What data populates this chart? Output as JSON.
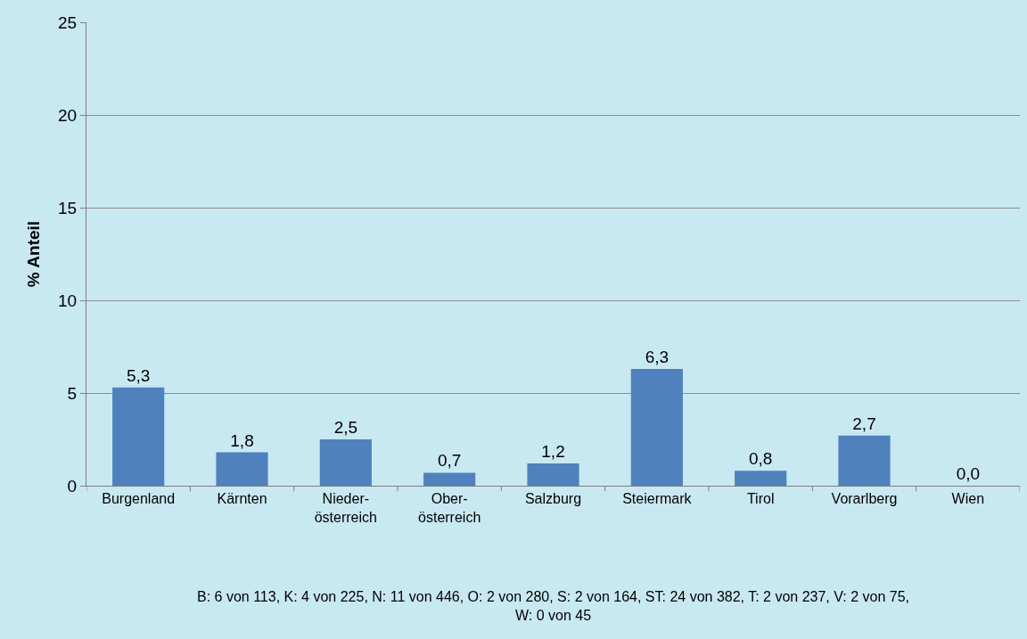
{
  "chart_data": {
    "type": "bar",
    "ylabel": "% Anteil",
    "categories": [
      "Burgenland",
      "Kärnten",
      "Nieder-\nösterreich",
      "Ober-\nösterreich",
      "Salzburg",
      "Steiermark",
      "Tirol",
      "Vorarlberg",
      "Wien"
    ],
    "values": [
      5.3,
      1.8,
      2.5,
      0.7,
      1.2,
      6.3,
      0.8,
      2.7,
      0.0
    ],
    "value_labels": [
      "5,3",
      "1,8",
      "2,5",
      "0,7",
      "1,2",
      "6,3",
      "0,8",
      "2,7",
      "0,0"
    ],
    "color": "#4f81bd",
    "ylim": [
      0,
      25
    ],
    "yticks": [
      0,
      5,
      10,
      15,
      20,
      25
    ],
    "grid": "y",
    "annotations": [
      "B: 6 von 113, K: 4 von 225, N: 11 von 446, O: 2 von 280, S: 2 von 164, ST: 24 von 382, T: 2 von 237, V: 2 von 75,\nW: 0 von 45"
    ]
  }
}
